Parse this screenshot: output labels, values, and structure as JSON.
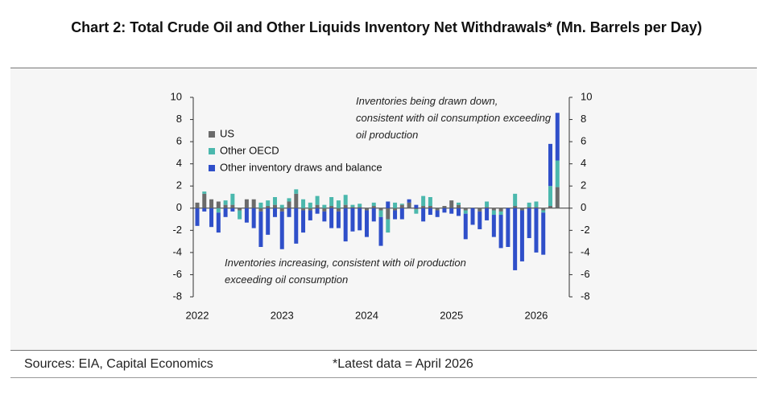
{
  "chart_data": {
    "type": "bar",
    "stacked": true,
    "title": "Chart 2: Total Crude Oil and Other Liquids Inventory Net Withdrawals* (Mn. Barrels per Day)",
    "annotations": [
      "Inventories being drawn down, consistent with oil consumption exceeding oil production",
      "Inventories increasing, consistent with oil production exceeding oil consumption"
    ],
    "source": "Sources: EIA, Capital Economics",
    "footnote": "*Latest data = April 2026",
    "categories": [
      "2022",
      null,
      null,
      null,
      null,
      null,
      null,
      null,
      null,
      null,
      null,
      null,
      "2023",
      null,
      null,
      null,
      null,
      null,
      null,
      null,
      null,
      null,
      null,
      null,
      "2024",
      null,
      null,
      null,
      null,
      null,
      null,
      null,
      null,
      null,
      null,
      null,
      "2025",
      null,
      null,
      null,
      null,
      null,
      null,
      null,
      null,
      null,
      null,
      null,
      "2026",
      null,
      null,
      null
    ],
    "series": [
      {
        "name": "US",
        "color": "#6b6b6b",
        "values": [
          0.5,
          1.3,
          0.8,
          0.6,
          0.3,
          0.3,
          -0.2,
          0.8,
          0.8,
          -0.3,
          0.2,
          0.3,
          -0.3,
          0.6,
          1.3,
          -0.2,
          -0.2,
          0.3,
          -0.3,
          0.2,
          -0.3,
          0.3,
          0.1,
          0.1,
          -0.2,
          0.2,
          -0.2,
          -1.0,
          -0.2,
          0.3,
          0.5,
          -0.1,
          0.2,
          0.2,
          -0.2,
          0.2,
          0.7,
          0.3,
          -0.2,
          0,
          -0.3,
          0.1,
          -0.2,
          -0.3,
          0,
          0.2,
          -0.2,
          0.1,
          0.1,
          -0.2,
          0.2,
          1.9
        ]
      },
      {
        "name": "Other OECD",
        "color": "#4bb8ad",
        "values": [
          0,
          0.2,
          0,
          -0.4,
          0.4,
          1.0,
          -0.8,
          0,
          0,
          0.5,
          0.5,
          0.7,
          0.3,
          0.3,
          0.4,
          0.8,
          0.5,
          0.8,
          0.3,
          0.8,
          0.7,
          0.9,
          0.2,
          0.3,
          0,
          0.3,
          -0.6,
          -1.2,
          0.5,
          0.1,
          0,
          -0.4,
          0.9,
          0.8,
          0,
          0,
          0,
          0.2,
          -0.3,
          0,
          0,
          0.5,
          -0.4,
          -0.3,
          0,
          1.1,
          0,
          0.4,
          0.5,
          -0.2,
          1.8,
          2.4
        ]
      },
      {
        "name": "Other inventory draws and balance",
        "color": "#2f4fc9",
        "values": [
          -1.6,
          -0.3,
          -1.7,
          -1.8,
          -0.8,
          -0.3,
          0,
          -1.3,
          -1.8,
          -3.2,
          -2.4,
          -0.8,
          -3.4,
          -0.8,
          -3.2,
          -2.0,
          -0.9,
          -0.5,
          -0.9,
          -1.8,
          -1.5,
          -3.0,
          -2.1,
          -2.0,
          -2.4,
          -1.2,
          -2.6,
          0.6,
          -0.8,
          -1.0,
          0.3,
          0.3,
          -1.2,
          -0.6,
          -0.6,
          -0.4,
          -0.5,
          -0.7,
          -2.3,
          -1.5,
          -1.6,
          -1.1,
          -2.0,
          -3.0,
          -3.5,
          -5.6,
          -4.6,
          -2.7,
          -4.0,
          -3.8,
          3.8,
          4.3
        ]
      }
    ],
    "ylim": [
      -8,
      10
    ],
    "yticks": [
      -8,
      -6,
      -4,
      -2,
      0,
      2,
      4,
      6,
      8,
      10
    ],
    "y2lim": [
      -8,
      10
    ],
    "y2ticks": [
      -8,
      -6,
      -4,
      -2,
      0,
      2,
      4,
      6,
      8,
      10
    ],
    "legend": "top-left",
    "grid": false
  }
}
